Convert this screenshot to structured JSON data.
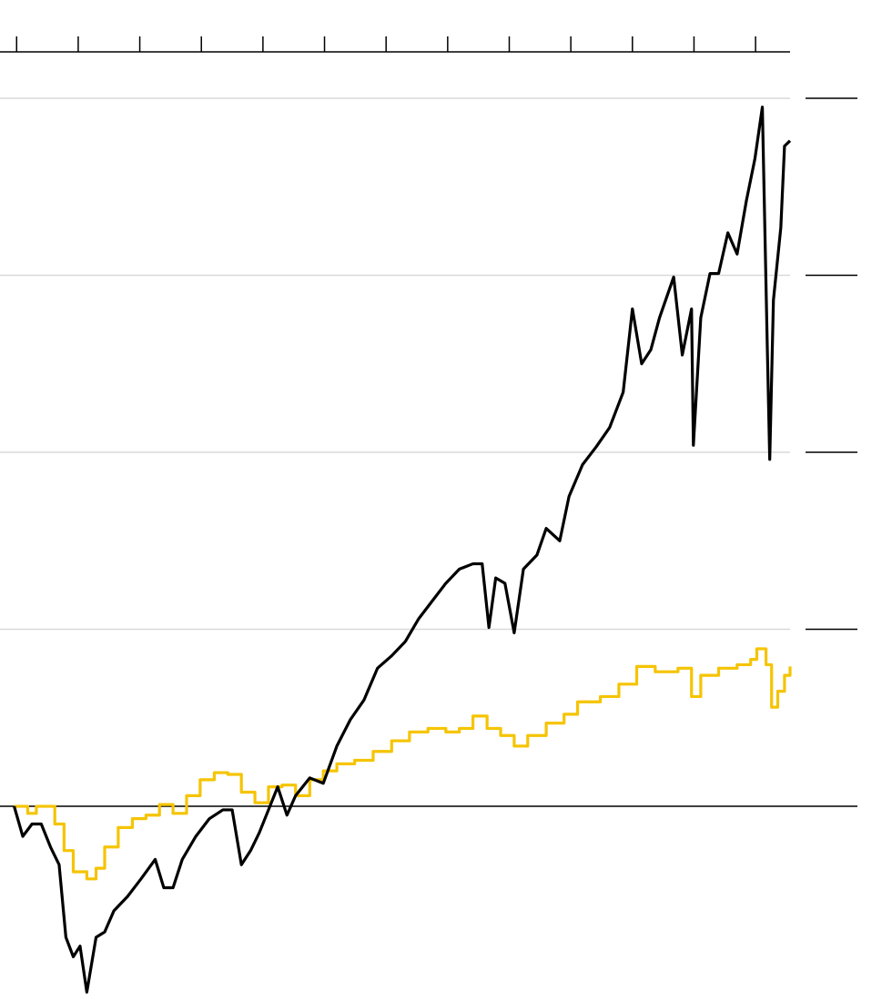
{
  "chart_data": {
    "type": "line",
    "xlim": [
      -0.27,
      12.56
    ],
    "xticks": [
      0,
      1,
      2,
      3,
      4,
      5,
      6,
      7,
      8,
      9,
      10,
      11,
      12
    ],
    "ylim": [
      -110,
      400
    ],
    "yticks": [
      0,
      100,
      200,
      300,
      400
    ],
    "grid": true,
    "series": [
      {
        "color": "#f5c400",
        "step": true,
        "x": [
          -0.04,
          0.18,
          0.32,
          0.47,
          0.62,
          0.77,
          0.92,
          1.14,
          1.29,
          1.43,
          1.65,
          1.88,
          2.1,
          2.32,
          2.54,
          2.76,
          2.98,
          3.21,
          3.43,
          3.65,
          3.87,
          4.09,
          4.31,
          4.53,
          4.76,
          4.98,
          5.2,
          5.49,
          5.79,
          6.09,
          6.38,
          6.68,
          6.97,
          7.19,
          7.41,
          7.64,
          7.86,
          8.08,
          8.3,
          8.6,
          8.89,
          9.11,
          9.48,
          9.78,
          10.07,
          10.37,
          10.74,
          10.96,
          11.11,
          11.4,
          11.7,
          11.92,
          12.02,
          12.17,
          12.26,
          12.36,
          12.47,
          12.56
        ],
        "values": [
          0,
          -4,
          0,
          0,
          -10,
          -25,
          -37,
          -41,
          -35,
          -23,
          -12,
          -7,
          -5,
          1,
          -4,
          6,
          15,
          19,
          18,
          8,
          2,
          11,
          12,
          6,
          15,
          20,
          24,
          26,
          31,
          37,
          42,
          44,
          42,
          44,
          51,
          44,
          40,
          34,
          40,
          47,
          52,
          59,
          62,
          69,
          79,
          76,
          78,
          62,
          74,
          78,
          80,
          83,
          89,
          80,
          56,
          65,
          74,
          79
        ]
      },
      {
        "color": "#000000",
        "step": false,
        "x": [
          -0.04,
          0.1,
          0.25,
          0.4,
          0.55,
          0.69,
          0.8,
          0.92,
          1.03,
          1.14,
          1.29,
          1.43,
          1.58,
          1.8,
          2.02,
          2.25,
          2.39,
          2.54,
          2.69,
          2.91,
          3.13,
          3.35,
          3.5,
          3.65,
          3.8,
          3.94,
          4.09,
          4.24,
          4.39,
          4.53,
          4.76,
          4.98,
          5.2,
          5.42,
          5.64,
          5.86,
          6.09,
          6.31,
          6.53,
          6.75,
          6.97,
          7.19,
          7.41,
          7.56,
          7.67,
          7.78,
          7.93,
          8.08,
          8.23,
          8.45,
          8.6,
          8.82,
          8.97,
          9.19,
          9.41,
          9.63,
          9.85,
          10.0,
          10.15,
          10.3,
          10.44,
          10.67,
          10.81,
          10.96,
          10.99,
          11.11,
          11.26,
          11.4,
          11.55,
          11.7,
          11.85,
          11.99,
          12.11,
          12.19,
          12.23,
          12.29,
          12.41,
          12.47,
          12.56
        ],
        "values": [
          0,
          -17,
          -10,
          -10,
          -23,
          -33,
          -74,
          -85,
          -79,
          -105,
          -74,
          -71,
          -59,
          -51,
          -41,
          -30,
          -46,
          -46,
          -30,
          -17,
          -7,
          -2,
          -2,
          -33,
          -25,
          -15,
          -2,
          11,
          -5,
          6,
          16,
          13,
          34,
          49,
          60,
          78,
          85,
          93,
          106,
          116,
          126,
          134,
          137,
          137,
          101,
          129,
          126,
          98,
          134,
          142,
          157,
          150,
          175,
          193,
          203,
          214,
          234,
          281,
          250,
          258,
          276,
          299,
          255,
          281,
          204,
          276,
          301,
          301,
          324,
          312,
          342,
          366,
          395,
          260,
          196,
          286,
          327,
          373,
          376
        ]
      }
    ]
  }
}
